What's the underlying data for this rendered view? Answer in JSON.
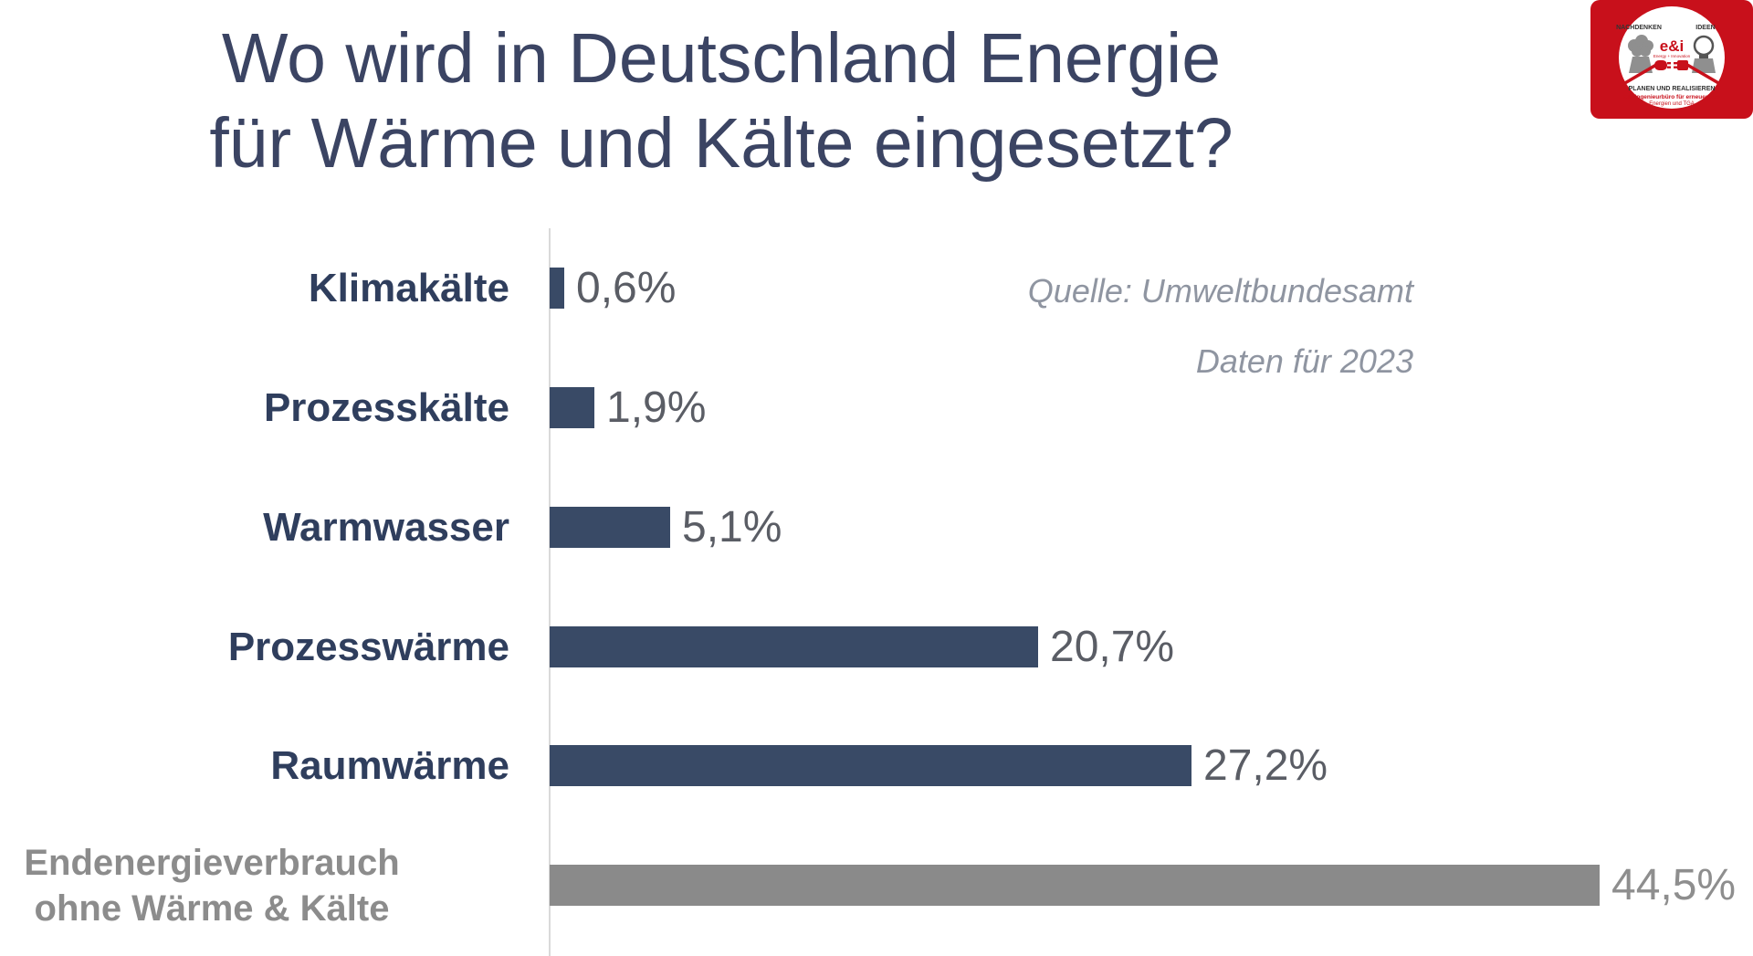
{
  "title": {
    "line1": "Wo wird in Deutschland Energie",
    "line2": "für Wärme und Kälte eingesetzt?"
  },
  "source": {
    "line1": "Quelle: Umweltbundesamt",
    "line2": "Daten für 2023"
  },
  "chart_data": {
    "type": "bar",
    "orientation": "horizontal",
    "title": "Wo wird in Deutschland Energie für Wärme und Kälte eingesetzt?",
    "categories": [
      "Klimakälte",
      "Prozesskälte",
      "Warmwasser",
      "Prozesswärme",
      "Raumwärme",
      "Endenergieverbrauch ohne Wärme & Kälte"
    ],
    "values": [
      0.6,
      1.9,
      5.1,
      20.7,
      27.2,
      44.5
    ],
    "value_labels": [
      "0,6%",
      "1,9%",
      "5,1%",
      "20,7%",
      "27,2%",
      "44,5%"
    ],
    "value_suffix": "%",
    "xlabel": "",
    "ylabel": "",
    "xlim": [
      0,
      50
    ],
    "grid": false,
    "legend": false,
    "bar_colors": [
      "#394a66",
      "#394a66",
      "#394a66",
      "#394a66",
      "#394a66",
      "#8a8a8a"
    ],
    "category_label_colors": [
      "#2f3e5d",
      "#2f3e5d",
      "#2f3e5d",
      "#2f3e5d",
      "#2f3e5d",
      "#8c8c8c"
    ],
    "value_label_colors": [
      "#5a5d65",
      "#5a5d65",
      "#5a5d65",
      "#5a5d65",
      "#5a5d65",
      "#8e8e8e"
    ],
    "axis_line_color": "#d9d9d9"
  },
  "colors": {
    "background": "#ffffff",
    "title_text": "#3b4463",
    "source_text": "#8f95a1",
    "logo_red": "#c8101b"
  },
  "logo": {
    "top_left": "NACHDENKEN",
    "top_right": "IDEEN",
    "brand": "e&i",
    "brand_sub": "Energy + Innovation",
    "bottom_line1": "PLANEN UND REALISIEREN",
    "bottom_line2": "E&I Ingenieurbüro für erneuerbare",
    "bottom_line3": "Energien und TGA"
  }
}
